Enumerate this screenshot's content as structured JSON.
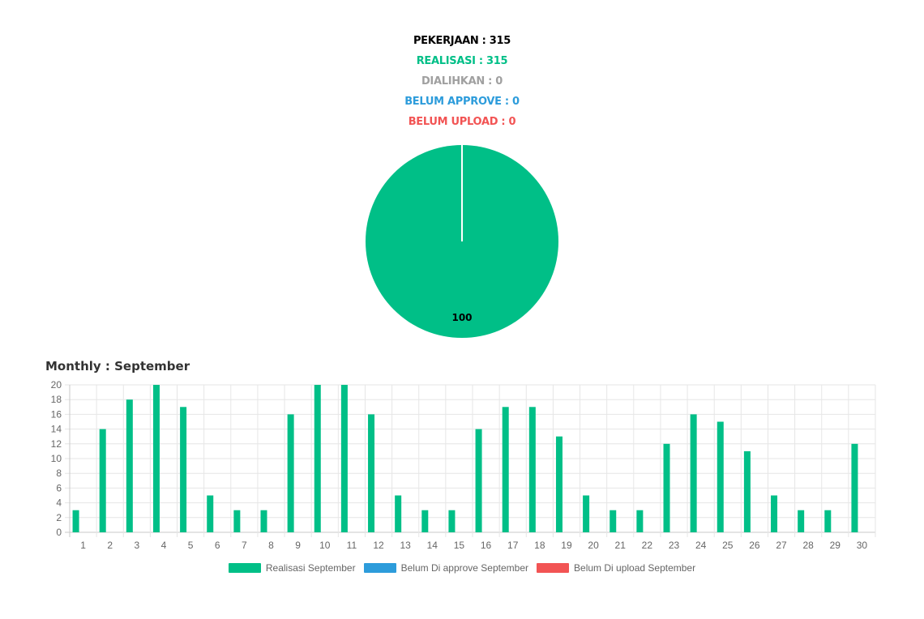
{
  "summary": {
    "pekerjaan": "PEKERJAAN : 315",
    "realisasi": "REALISASI : 315",
    "dialihkan": "DIALIHKAN : 0",
    "belum_approve": "BELUM APPROVE : 0",
    "belum_upload": "BELUM UPLOAD : 0"
  },
  "colors": {
    "pekerjaan": "#000000",
    "realisasi": "#00bf87",
    "dialihkan": "#a0a0a0",
    "belum_approve": "#2d9cdb",
    "belum_upload": "#f25454"
  },
  "monthly_title": "Monthly : September",
  "chart_data": [
    {
      "type": "pie",
      "labels": [
        "Realisasi",
        "Dialihkan",
        "Belum Approve",
        "Belum Upload"
      ],
      "values": [
        100,
        0,
        0,
        0
      ],
      "colors": [
        "#00bf87",
        "#a0a0a0",
        "#2d9cdb",
        "#f25454"
      ],
      "data_labels": [
        "100"
      ]
    },
    {
      "type": "bar",
      "title": "Monthly : September",
      "categories": [
        "1",
        "2",
        "3",
        "4",
        "5",
        "6",
        "7",
        "8",
        "9",
        "10",
        "11",
        "12",
        "13",
        "14",
        "15",
        "16",
        "17",
        "18",
        "19",
        "20",
        "21",
        "22",
        "23",
        "24",
        "25",
        "26",
        "27",
        "28",
        "29",
        "30"
      ],
      "series": [
        {
          "name": "Realisasi September",
          "color": "#00bf87",
          "values": [
            3,
            14,
            18,
            20,
            17,
            5,
            3,
            3,
            16,
            20,
            20,
            16,
            5,
            3,
            3,
            14,
            17,
            17,
            13,
            5,
            3,
            3,
            12,
            16,
            15,
            11,
            5,
            3,
            3,
            12
          ]
        },
        {
          "name": "Belum Di approve September",
          "color": "#2d9cdb",
          "values": [
            0,
            0,
            0,
            0,
            0,
            0,
            0,
            0,
            0,
            0,
            0,
            0,
            0,
            0,
            0,
            0,
            0,
            0,
            0,
            0,
            0,
            0,
            0,
            0,
            0,
            0,
            0,
            0,
            0,
            0
          ]
        },
        {
          "name": "Belum Di upload September",
          "color": "#f25454",
          "values": [
            0,
            0,
            0,
            0,
            0,
            0,
            0,
            0,
            0,
            0,
            0,
            0,
            0,
            0,
            0,
            0,
            0,
            0,
            0,
            0,
            0,
            0,
            0,
            0,
            0,
            0,
            0,
            0,
            0,
            0
          ]
        }
      ],
      "ylim": [
        0,
        20
      ],
      "yticks": [
        0,
        2,
        4,
        6,
        8,
        10,
        12,
        14,
        16,
        18,
        20
      ],
      "grid": true,
      "legend_position": "bottom"
    }
  ]
}
